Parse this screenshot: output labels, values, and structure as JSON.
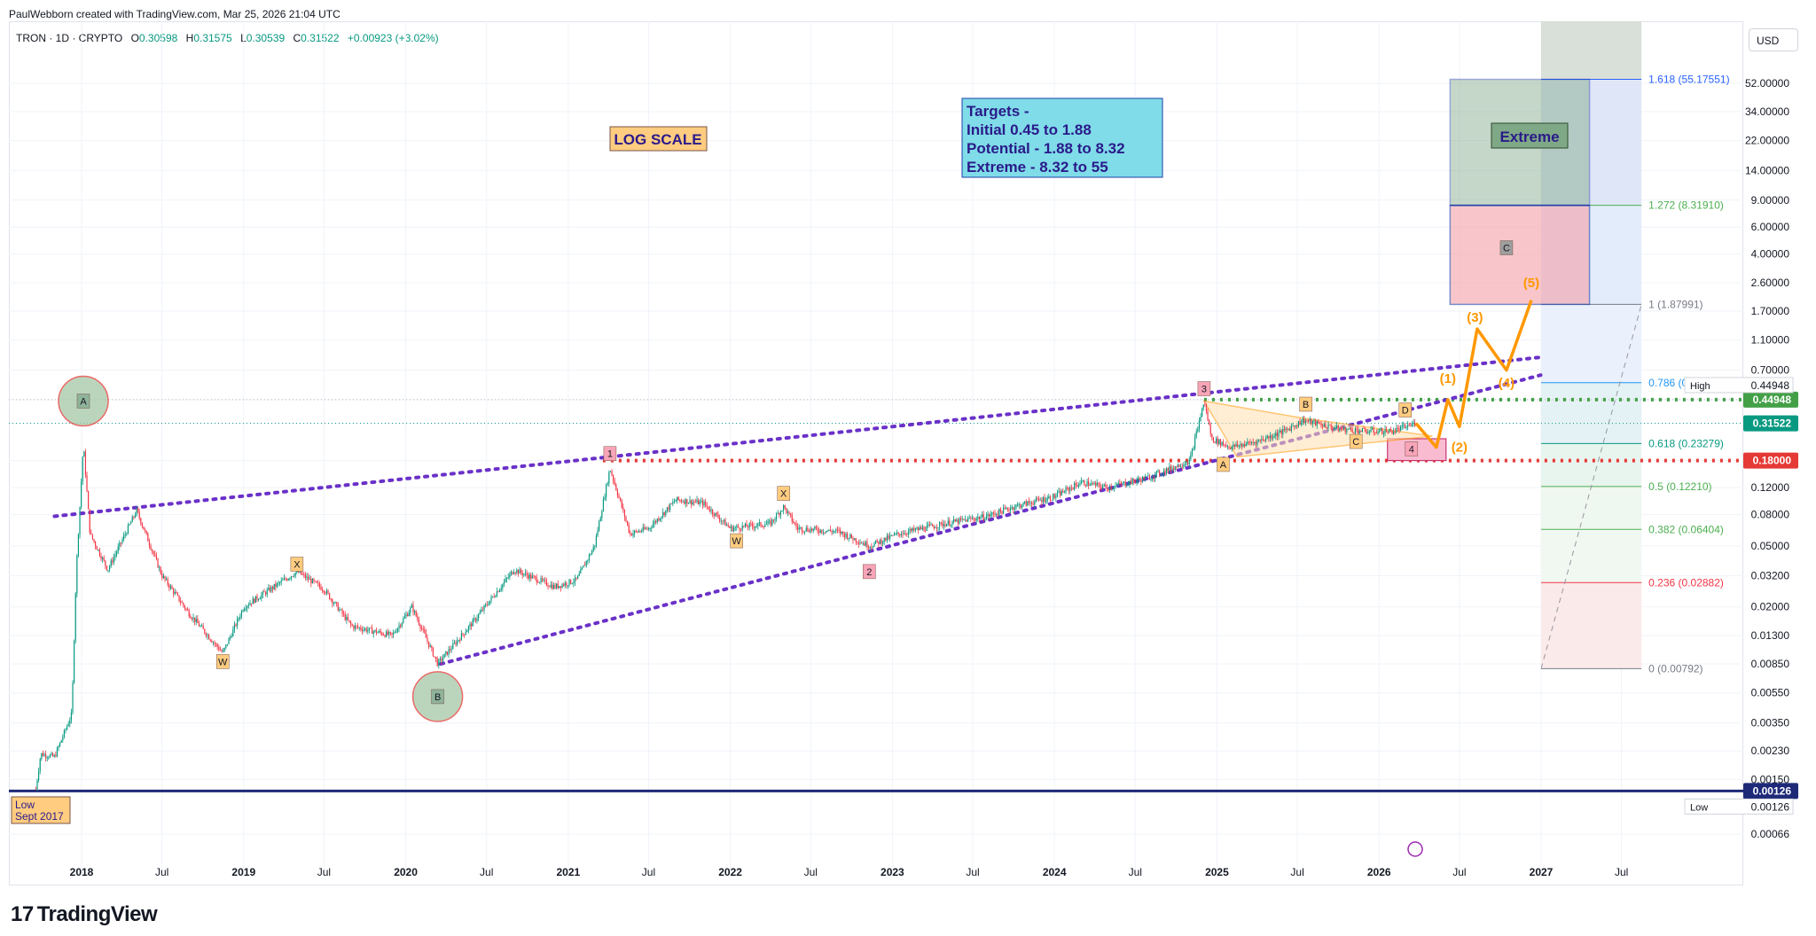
{
  "header": {
    "attribution": "PaulWebborn created with TradingView.com, Mar 25, 2026 21:04 UTC",
    "symbol": "TRON · 1D · CRYPTO",
    "open_label": "O",
    "open": "0.30598",
    "high_label": "H",
    "high": "0.31575",
    "low_label": "L",
    "low": "0.30539",
    "close_label": "C",
    "close": "0.31522",
    "change": "+0.00923 (+3.02%)"
  },
  "currency_button": "USD",
  "footer": {
    "brand": "TradingView"
  },
  "colors": {
    "up": "#089981",
    "down": "#f23645",
    "channel": "#6a31c8",
    "wave": "#ff9800",
    "fib_blue": "#2962ff",
    "fib_green": "#4caf50",
    "fib_red": "#f23645",
    "support": "#e53935"
  },
  "chart_data": {
    "type": "candlestick",
    "scale": "log",
    "title": "",
    "xlabel": "",
    "ylabel": "",
    "ylim": [
      0.00066,
      52.0
    ],
    "grid": true,
    "x_ticks": [
      "2018",
      "Jul",
      "2019",
      "Jul",
      "2020",
      "Jul",
      "2021",
      "Jul",
      "2022",
      "Jul",
      "2023",
      "Jul",
      "2024",
      "Jul",
      "2025",
      "Jul",
      "2026",
      "Jul",
      "2027",
      "Jul"
    ],
    "x_tick_dates": [
      "2018-01-01",
      "2018-07-01",
      "2019-01-01",
      "2019-07-01",
      "2020-01-01",
      "2020-07-01",
      "2021-01-01",
      "2021-07-01",
      "2022-01-01",
      "2022-07-01",
      "2023-01-01",
      "2023-07-01",
      "2024-01-01",
      "2024-07-01",
      "2025-01-01",
      "2025-07-01",
      "2026-01-01",
      "2026-07-01",
      "2027-01-01",
      "2027-07-01"
    ],
    "y_ticks": [
      "52.00000",
      "34.00000",
      "22.00000",
      "14.00000",
      "9.00000",
      "6.00000",
      "4.00000",
      "2.60000",
      "1.70000",
      "1.10000",
      "0.70000",
      "0.44948",
      "0.31522",
      "0.18000",
      "0.12000",
      "0.08000",
      "0.05000",
      "0.03200",
      "0.02000",
      "0.01300",
      "0.00850",
      "0.00550",
      "0.00350",
      "0.00230",
      "0.00150",
      "0.00126",
      "0.00066"
    ],
    "price_series": [
      [
        "2017-09-20",
        0.0013
      ],
      [
        "2017-10-01",
        0.0022
      ],
      [
        "2017-11-01",
        0.0021
      ],
      [
        "2017-12-10",
        0.004
      ],
      [
        "2017-12-20",
        0.035
      ],
      [
        "2018-01-05",
        0.23
      ],
      [
        "2018-01-20",
        0.06
      ],
      [
        "2018-03-01",
        0.035
      ],
      [
        "2018-05-05",
        0.085
      ],
      [
        "2018-07-01",
        0.032
      ],
      [
        "2018-09-01",
        0.018
      ],
      [
        "2018-11-15",
        0.01
      ],
      [
        "2019-01-01",
        0.02
      ],
      [
        "2019-05-01",
        0.034
      ],
      [
        "2019-07-01",
        0.026
      ],
      [
        "2019-09-01",
        0.015
      ],
      [
        "2019-12-01",
        0.013
      ],
      [
        "2020-01-15",
        0.02
      ],
      [
        "2020-03-13",
        0.0085
      ],
      [
        "2020-06-01",
        0.016
      ],
      [
        "2020-09-01",
        0.035
      ],
      [
        "2020-12-01",
        0.027
      ],
      [
        "2021-01-20",
        0.03
      ],
      [
        "2021-03-01",
        0.05
      ],
      [
        "2021-04-05",
        0.16
      ],
      [
        "2021-05-20",
        0.06
      ],
      [
        "2021-07-01",
        0.065
      ],
      [
        "2021-09-01",
        0.1
      ],
      [
        "2021-11-01",
        0.095
      ],
      [
        "2022-01-01",
        0.065
      ],
      [
        "2022-04-01",
        0.07
      ],
      [
        "2022-05-01",
        0.09
      ],
      [
        "2022-06-01",
        0.065
      ],
      [
        "2022-09-01",
        0.062
      ],
      [
        "2022-11-10",
        0.05
      ],
      [
        "2023-01-15",
        0.06
      ],
      [
        "2023-05-01",
        0.07
      ],
      [
        "2023-08-01",
        0.078
      ],
      [
        "2023-10-01",
        0.09
      ],
      [
        "2024-01-01",
        0.105
      ],
      [
        "2024-03-01",
        0.13
      ],
      [
        "2024-05-01",
        0.12
      ],
      [
        "2024-08-01",
        0.14
      ],
      [
        "2024-11-01",
        0.18
      ],
      [
        "2024-12-03",
        0.44
      ],
      [
        "2024-12-20",
        0.25
      ],
      [
        "2025-02-01",
        0.22
      ],
      [
        "2025-04-01",
        0.24
      ],
      [
        "2025-06-01",
        0.28
      ],
      [
        "2025-07-15",
        0.33
      ],
      [
        "2025-10-01",
        0.29
      ],
      [
        "2025-12-01",
        0.28
      ],
      [
        "2026-02-01",
        0.28
      ],
      [
        "2026-03-25",
        0.31522
      ]
    ],
    "projection_series": [
      [
        "2026-05-10",
        0.22
      ],
      [
        "2026-06-05",
        0.45
      ],
      [
        "2026-07-01",
        0.3
      ],
      [
        "2026-08-10",
        1.3
      ],
      [
        "2026-10-15",
        0.7
      ],
      [
        "2026-12-10",
        2.0
      ]
    ],
    "fib_levels": [
      {
        "label": "1.618 (55.17551)",
        "value": 55.17551
      },
      {
        "label": "1.272 (8.31910)",
        "value": 8.3191
      },
      {
        "label": "1 (1.87991)",
        "value": 1.87991
      },
      {
        "label": "0.786 (0.58",
        "value": 0.58
      },
      {
        "label": "0.618 (0.23279)",
        "value": 0.23279
      },
      {
        "label": "0.5 (0.12210)",
        "value": 0.1221
      },
      {
        "label": "0.382 (0.06404)",
        "value": 0.06404
      },
      {
        "label": "0.236 (0.02882)",
        "value": 0.02882
      },
      {
        "label": "0 (0.00792)",
        "value": 0.00792
      }
    ],
    "price_tags": [
      {
        "label": "",
        "value": "0.44948"
      },
      {
        "label": "",
        "value": "0.31522"
      },
      {
        "label": "",
        "value": "0.18000"
      },
      {
        "label": "",
        "value": "0.00126"
      },
      {
        "label": "High",
        "value": "0.44948"
      },
      {
        "label": "Low",
        "value": "0.00126"
      }
    ],
    "annotations": {
      "log_scale": "LOG SCALE",
      "targets": [
        "Targets -",
        "Initial 0.45 to 1.88",
        "Potential - 1.88 to 8.32",
        "Extreme - 8.32 to 55"
      ],
      "extreme": "Extreme",
      "low_note": [
        "Low",
        "Sept 2017"
      ],
      "wave_labels": [
        "A",
        "B",
        "W",
        "X",
        "W",
        "X",
        "1",
        "2",
        "3",
        "4",
        "A",
        "B",
        "C",
        "D",
        "C"
      ],
      "projection_labels": [
        "(1)",
        "(2)",
        "(3)",
        "(4)",
        "(5)"
      ]
    }
  }
}
